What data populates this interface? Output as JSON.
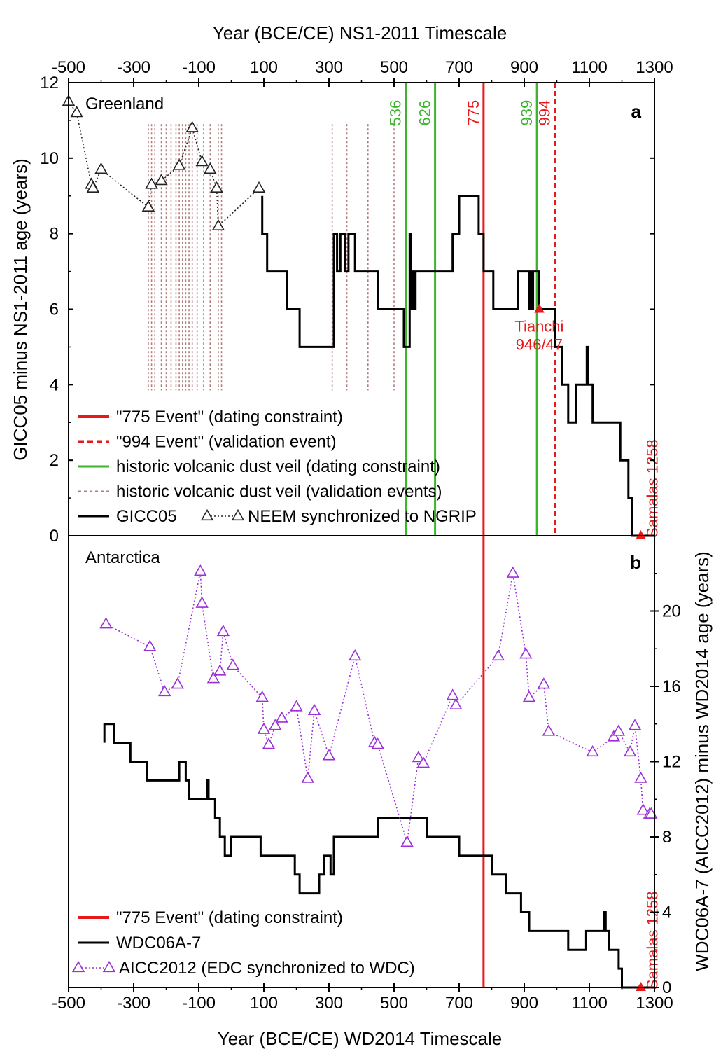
{
  "colors": {
    "red": "#e8191b",
    "green": "#3cb52c",
    "dust": "#b07c7c",
    "purple": "#9b30d9",
    "black": "#000000"
  },
  "top_axis": {
    "label": "Year (BCE/CE) NS1-2011 Timescale",
    "ticks": [
      "-500",
      "-300",
      "-100",
      "100",
      "300",
      "500",
      "700",
      "900",
      "1100",
      "1300"
    ]
  },
  "bottom_axis": {
    "label": "Year (BCE/CE) WD2014 Timescale",
    "ticks": [
      "-500",
      "-300",
      "-100",
      "100",
      "300",
      "500",
      "700",
      "900",
      "1100",
      "1300"
    ]
  },
  "chart_data": [
    {
      "type": "line",
      "panel_letter": "a",
      "region_label": "Greenland",
      "ylabel": "GICC05 minus NS1-2011 age (years)",
      "xlim": [
        -500,
        1300
      ],
      "ylim": [
        0,
        12
      ],
      "yticks": [
        "0",
        "2",
        "4",
        "6",
        "8",
        "10",
        "12"
      ],
      "legend": [
        {
          "label": "\"775 Event\" (dating constraint)",
          "style": "red-solid"
        },
        {
          "label": "\"994 Event\" (validation event)",
          "style": "red-dashed"
        },
        {
          "label": "historic volcanic dust veil (dating constraint)",
          "style": "green-solid"
        },
        {
          "label": "historic volcanic dust veil (validation events)",
          "style": "dust-dashed"
        },
        {
          "label": "GICC05",
          "style": "black-solid"
        },
        {
          "label": "NEEM synchronized to NGRIP",
          "style": "triangle-dotted"
        }
      ],
      "vlines": [
        {
          "x": 536,
          "label": "536",
          "color": "green"
        },
        {
          "x": 626,
          "label": "626",
          "color": "green"
        },
        {
          "x": 775,
          "label": "775",
          "color": "red"
        },
        {
          "x": 939,
          "label": "939",
          "color": "green"
        },
        {
          "x": 994,
          "label": "994",
          "color": "red",
          "dashed": true
        }
      ],
      "dust_validation_years": [
        -255,
        -245,
        -235,
        -215,
        -200,
        -185,
        -170,
        -160,
        -150,
        -140,
        -130,
        -120,
        -105,
        -85,
        -65,
        -40,
        -30,
        310,
        355,
        420,
        500
      ],
      "events": [
        {
          "label": "Tianchi",
          "label2": "946/47",
          "x": 946,
          "y": 6
        },
        {
          "label": "Samalas 1258",
          "x": 1258,
          "y": 0
        }
      ],
      "series": [
        {
          "name": "GICC05",
          "style": "step",
          "points": [
            [
              95,
              9
            ],
            [
              95,
              8
            ],
            [
              110,
              8
            ],
            [
              110,
              7
            ],
            [
              170,
              7
            ],
            [
              170,
              6
            ],
            [
              210,
              6
            ],
            [
              210,
              5
            ],
            [
              315,
              5
            ],
            [
              315,
              8
            ],
            [
              325,
              8
            ],
            [
              325,
              7
            ],
            [
              335,
              7
            ],
            [
              335,
              8
            ],
            [
              350,
              8
            ],
            [
              350,
              7
            ],
            [
              360,
              7
            ],
            [
              360,
              8
            ],
            [
              380,
              8
            ],
            [
              380,
              7
            ],
            [
              450,
              7
            ],
            [
              450,
              6
            ],
            [
              530,
              6
            ],
            [
              530,
              5
            ],
            [
              548,
              5
            ],
            [
              548,
              8
            ],
            [
              552,
              8
            ],
            [
              552,
              6
            ],
            [
              556,
              6
            ],
            [
              556,
              7
            ],
            [
              562,
              7
            ],
            [
              562,
              6
            ],
            [
              566,
              6
            ],
            [
              566,
              7
            ],
            [
              680,
              7
            ],
            [
              680,
              8
            ],
            [
              700,
              8
            ],
            [
              700,
              9
            ],
            [
              760,
              9
            ],
            [
              760,
              8
            ],
            [
              775,
              8
            ],
            [
              775,
              7
            ],
            [
              805,
              7
            ],
            [
              805,
              6
            ],
            [
              880,
              6
            ],
            [
              880,
              7
            ],
            [
              915,
              7
            ],
            [
              915,
              6
            ],
            [
              920,
              6
            ],
            [
              920,
              7
            ],
            [
              923,
              7
            ],
            [
              923,
              6
            ],
            [
              927,
              6
            ],
            [
              927,
              7
            ],
            [
              945,
              7
            ],
            [
              945,
              6
            ],
            [
              995,
              6
            ],
            [
              995,
              5
            ],
            [
              1015,
              5
            ],
            [
              1015,
              4
            ],
            [
              1035,
              4
            ],
            [
              1035,
              3
            ],
            [
              1060,
              3
            ],
            [
              1060,
              4
            ],
            [
              1092,
              4
            ],
            [
              1092,
              5
            ],
            [
              1096,
              5
            ],
            [
              1096,
              4
            ],
            [
              1110,
              4
            ],
            [
              1110,
              3
            ],
            [
              1195,
              3
            ],
            [
              1195,
              2
            ],
            [
              1220,
              2
            ],
            [
              1220,
              1
            ],
            [
              1232,
              1
            ],
            [
              1232,
              0
            ],
            [
              1300,
              0
            ]
          ]
        },
        {
          "name": "NEEM synchronized to NGRIP",
          "style": "triangle-dotted",
          "points": [
            [
              -500,
              11.5
            ],
            [
              -475,
              11.2
            ],
            [
              -430,
              9.3
            ],
            [
              -425,
              9.2
            ],
            [
              -400,
              9.7
            ],
            [
              -255,
              8.7
            ],
            [
              -245,
              9.3
            ],
            [
              -215,
              9.4
            ],
            [
              -160,
              9.8
            ],
            [
              -120,
              10.8
            ],
            [
              -90,
              9.9
            ],
            [
              -65,
              9.7
            ],
            [
              -45,
              9.2
            ],
            [
              -40,
              8.2
            ],
            [
              85,
              9.2
            ]
          ]
        }
      ]
    },
    {
      "type": "line",
      "panel_letter": "b",
      "region_label": "Antarctica",
      "ylabel": "WDC06A-7 (AICC2012) minus WD2014 age (years)",
      "xlim": [
        -500,
        1300
      ],
      "ylim": [
        0,
        24
      ],
      "yticks": [
        "0",
        "4",
        "8",
        "12",
        "16",
        "20"
      ],
      "legend": [
        {
          "label": "\"775 Event\" (dating constraint)",
          "style": "red-solid"
        },
        {
          "label": "WDC06A-7",
          "style": "black-solid"
        },
        {
          "label": "AICC2012 (EDC synchronized to WDC)",
          "style": "triangle-dotted"
        }
      ],
      "vlines": [
        {
          "x": 775,
          "color": "red"
        }
      ],
      "events": [
        {
          "label": "Samalas 1258",
          "x": 1258,
          "y": 0
        }
      ],
      "series": [
        {
          "name": "WDC06A-7",
          "style": "step",
          "points": [
            [
              -390,
              13
            ],
            [
              -390,
              14
            ],
            [
              -360,
              14
            ],
            [
              -360,
              13
            ],
            [
              -310,
              13
            ],
            [
              -310,
              12
            ],
            [
              -260,
              12
            ],
            [
              -260,
              11
            ],
            [
              -160,
              11
            ],
            [
              -160,
              12
            ],
            [
              -140,
              12
            ],
            [
              -140,
              11
            ],
            [
              -130,
              11
            ],
            [
              -130,
              10
            ],
            [
              -75,
              10
            ],
            [
              -75,
              11
            ],
            [
              -70,
              11
            ],
            [
              -70,
              10
            ],
            [
              -50,
              10
            ],
            [
              -50,
              9
            ],
            [
              -35,
              9
            ],
            [
              -35,
              8
            ],
            [
              -20,
              8
            ],
            [
              -20,
              7
            ],
            [
              0,
              7
            ],
            [
              0,
              8
            ],
            [
              90,
              8
            ],
            [
              90,
              7
            ],
            [
              195,
              7
            ],
            [
              195,
              6
            ],
            [
              210,
              6
            ],
            [
              210,
              5
            ],
            [
              270,
              5
            ],
            [
              270,
              6
            ],
            [
              285,
              6
            ],
            [
              285,
              7
            ],
            [
              305,
              7
            ],
            [
              305,
              6
            ],
            [
              315,
              6
            ],
            [
              315,
              8
            ],
            [
              450,
              8
            ],
            [
              450,
              9
            ],
            [
              600,
              9
            ],
            [
              600,
              8
            ],
            [
              700,
              8
            ],
            [
              700,
              7
            ],
            [
              800,
              7
            ],
            [
              800,
              6
            ],
            [
              845,
              6
            ],
            [
              845,
              5
            ],
            [
              890,
              5
            ],
            [
              890,
              4
            ],
            [
              915,
              4
            ],
            [
              915,
              3
            ],
            [
              1035,
              3
            ],
            [
              1035,
              2
            ],
            [
              1090,
              2
            ],
            [
              1090,
              3
            ],
            [
              1145,
              3
            ],
            [
              1145,
              4
            ],
            [
              1150,
              4
            ],
            [
              1150,
              3
            ],
            [
              1160,
              3
            ],
            [
              1160,
              2
            ],
            [
              1190,
              2
            ],
            [
              1190,
              1
            ],
            [
              1200,
              1
            ],
            [
              1200,
              0
            ],
            [
              1300,
              0
            ]
          ]
        },
        {
          "name": "AICC2012 (EDC synchronized to WDC)",
          "style": "triangle-dotted",
          "points": [
            [
              -385,
              19.3
            ],
            [
              -250,
              18.1
            ],
            [
              -205,
              15.7
            ],
            [
              -165,
              16.1
            ],
            [
              -95,
              22.1
            ],
            [
              -90,
              20.4
            ],
            [
              -55,
              16.4
            ],
            [
              -35,
              16.8
            ],
            [
              -25,
              18.9
            ],
            [
              5,
              17.1
            ],
            [
              95,
              15.4
            ],
            [
              100,
              13.7
            ],
            [
              115,
              12.9
            ],
            [
              135,
              13.9
            ],
            [
              155,
              14.3
            ],
            [
              200,
              14.9
            ],
            [
              235,
              11.1
            ],
            [
              255,
              14.7
            ],
            [
              300,
              12.3
            ],
            [
              380,
              17.6
            ],
            [
              440,
              13.0
            ],
            [
              450,
              12.9
            ],
            [
              540,
              7.7
            ],
            [
              575,
              12.2
            ],
            [
              590,
              11.9
            ],
            [
              680,
              15.5
            ],
            [
              690,
              15.0
            ],
            [
              820,
              17.6
            ],
            [
              865,
              22.0
            ],
            [
              905,
              17.7
            ],
            [
              915,
              15.4
            ],
            [
              960,
              16.1
            ],
            [
              975,
              13.6
            ],
            [
              1110,
              12.5
            ],
            [
              1175,
              13.3
            ],
            [
              1190,
              13.6
            ],
            [
              1225,
              12.5
            ],
            [
              1240,
              13.9
            ],
            [
              1258,
              11.1
            ],
            [
              1265,
              9.4
            ],
            [
              1285,
              9.2
            ],
            [
              1290,
              9.2
            ]
          ]
        }
      ]
    }
  ]
}
